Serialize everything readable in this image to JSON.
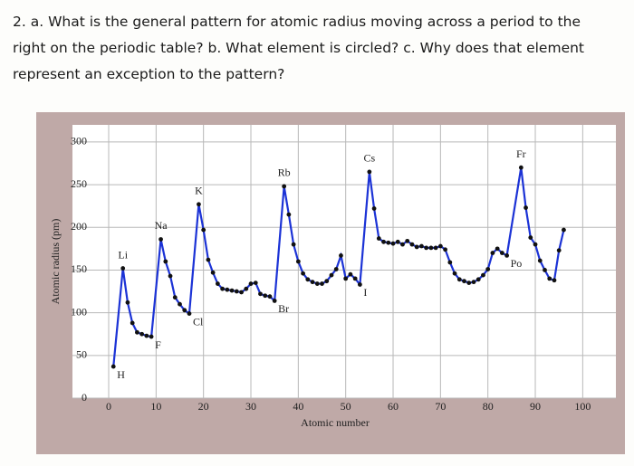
{
  "question": {
    "lines": [
      "2. a. What is the general pattern for atomic radius moving across a period to the",
      "right on the periodic table? b. What element is circled? c. Why does that element",
      "represent an exception to the pattern?"
    ]
  },
  "chart_data": {
    "type": "line",
    "x_label": "Atomic number",
    "y_label": "Atomic radius (pm)",
    "x": [
      1,
      3,
      4,
      5,
      6,
      7,
      8,
      9,
      11,
      12,
      13,
      14,
      15,
      16,
      17,
      19,
      20,
      21,
      22,
      23,
      24,
      25,
      26,
      27,
      28,
      29,
      30,
      31,
      32,
      33,
      34,
      35,
      37,
      38,
      39,
      40,
      41,
      42,
      43,
      44,
      45,
      46,
      47,
      48,
      49,
      50,
      51,
      52,
      53,
      55,
      56,
      57,
      58,
      59,
      60,
      61,
      62,
      63,
      64,
      65,
      66,
      67,
      68,
      69,
      70,
      71,
      72,
      73,
      74,
      75,
      76,
      77,
      78,
      79,
      80,
      81,
      82,
      83,
      84,
      87,
      88,
      89,
      90,
      91,
      92,
      93,
      94,
      95,
      96
    ],
    "values": [
      37,
      152,
      112,
      88,
      77,
      75,
      73,
      72,
      186,
      160,
      143,
      118,
      110,
      103,
      99,
      227,
      197,
      162,
      147,
      134,
      128,
      127,
      126,
      125,
      124,
      128,
      134,
      135,
      122,
      120,
      119,
      114,
      248,
      215,
      180,
      160,
      146,
      139,
      136,
      134,
      134,
      137,
      144,
      151,
      167,
      140,
      145,
      140,
      133,
      265,
      222,
      187,
      183,
      182,
      181,
      183,
      180,
      184,
      180,
      177,
      178,
      176,
      176,
      176,
      178,
      174,
      159,
      146,
      139,
      137,
      135,
      136,
      139,
      144,
      151,
      170,
      175,
      170,
      167,
      270,
      223,
      188,
      180,
      161,
      150,
      140,
      138,
      173,
      197
    ],
    "color": "#1c33d6",
    "marker_color": "#111111",
    "annotations": [
      {
        "label": "H",
        "x": 1
      },
      {
        "label": "Li",
        "x": 3
      },
      {
        "label": "F",
        "x": 9
      },
      {
        "label": "Na",
        "x": 11
      },
      {
        "label": "Cl",
        "x": 17
      },
      {
        "label": "K",
        "x": 19
      },
      {
        "label": "Br",
        "x": 35
      },
      {
        "label": "Rb",
        "x": 37
      },
      {
        "label": "I",
        "x": 53
      },
      {
        "label": "Cs",
        "x": 55
      },
      {
        "label": "Po",
        "x": 84
      },
      {
        "label": "Fr",
        "x": 87
      }
    ],
    "xlim": [
      0,
      107
    ],
    "ylim": [
      0,
      320
    ],
    "xticks": [
      0,
      10,
      20,
      30,
      40,
      50,
      60,
      70,
      80,
      90,
      100
    ],
    "yticks": [
      0,
      50,
      100,
      150,
      200,
      250,
      300
    ],
    "grid": true
  }
}
